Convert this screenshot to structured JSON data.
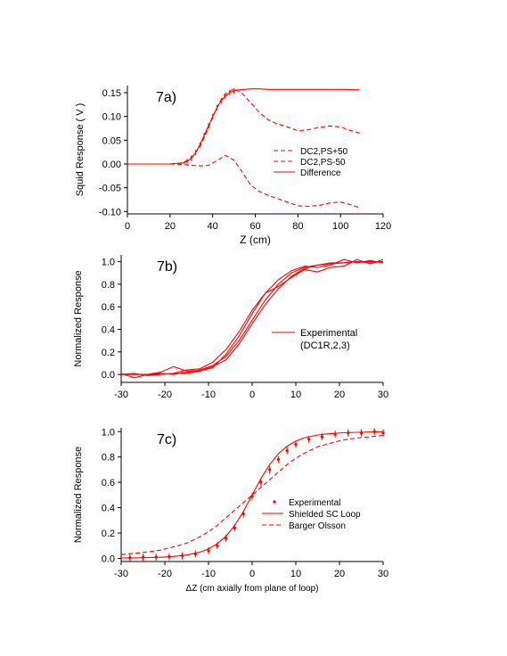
{
  "chart_data": [
    {
      "type": "line",
      "panel_label": "7a)",
      "xlabel": "Z  (cm)",
      "ylabel": "Squid Response  ( V )",
      "xlim": [
        0,
        120
      ],
      "ylim": [
        -0.105,
        0.165
      ],
      "xticks": [
        0,
        20,
        40,
        60,
        80,
        100,
        120
      ],
      "yticks": [
        -0.1,
        -0.05,
        0.0,
        0.05,
        0.1,
        0.15
      ],
      "ytick_labels": [
        "-0.10",
        "-0.05",
        "0.00",
        "0.05",
        "0.10",
        "0.15"
      ],
      "grid": false,
      "legend_position": "right-middle",
      "series": [
        {
          "name": "DC2,PS+50",
          "style": "dashed",
          "x": [
            0,
            20,
            25,
            28,
            31,
            34,
            37,
            40,
            43,
            46,
            50,
            54,
            58,
            62,
            66,
            70,
            75,
            80,
            85,
            90,
            95,
            100,
            105,
            109
          ],
          "y": [
            0.0,
            0.0,
            0.002,
            0.007,
            0.018,
            0.036,
            0.065,
            0.098,
            0.128,
            0.148,
            0.158,
            0.148,
            0.128,
            0.108,
            0.093,
            0.085,
            0.078,
            0.07,
            0.072,
            0.077,
            0.08,
            0.078,
            0.07,
            0.065
          ]
        },
        {
          "name": "DC2,PS-50",
          "style": "dashed",
          "x": [
            0,
            20,
            26,
            30,
            34,
            38,
            42,
            46,
            50,
            54,
            58,
            62,
            66,
            70,
            75,
            80,
            85,
            90,
            95,
            100,
            105,
            109
          ],
          "y": [
            0.0,
            0.0,
            -0.001,
            -0.003,
            -0.004,
            -0.003,
            0.007,
            0.018,
            0.008,
            -0.018,
            -0.045,
            -0.058,
            -0.066,
            -0.072,
            -0.08,
            -0.088,
            -0.089,
            -0.087,
            -0.082,
            -0.08,
            -0.086,
            -0.092
          ]
        },
        {
          "name": "Difference",
          "style": "solid",
          "x": [
            0,
            20,
            26,
            28,
            30,
            32,
            34,
            36,
            38,
            40,
            42,
            44,
            46,
            48,
            50,
            52,
            55,
            58,
            62,
            66,
            70,
            80,
            90,
            100,
            109
          ],
          "y": [
            0.0,
            0.0,
            0.002,
            0.005,
            0.012,
            0.024,
            0.04,
            0.06,
            0.08,
            0.1,
            0.118,
            0.133,
            0.143,
            0.15,
            0.154,
            0.156,
            0.157,
            0.158,
            0.158,
            0.157,
            0.157,
            0.157,
            0.157,
            0.157,
            0.156
          ]
        }
      ]
    },
    {
      "type": "line",
      "panel_label": "7b)",
      "xlabel": "",
      "ylabel": "Normalized Response",
      "xlim": [
        -30,
        30
      ],
      "ylim": [
        -0.07,
        1.06
      ],
      "xticks": [
        -30,
        -20,
        -10,
        0,
        10,
        20,
        30
      ],
      "yticks": [
        0.0,
        0.2,
        0.4,
        0.6,
        0.8,
        1.0
      ],
      "ytick_labels": [
        "0.0",
        "0.2",
        "0.4",
        "0.6",
        "0.8",
        "1.0"
      ],
      "grid": false,
      "legend_position": "right-middle",
      "legend_label": "Experimental",
      "legend_sublabel": "(DC1R,2,3)",
      "series": [
        {
          "x": [
            -30,
            -27,
            -24,
            -21,
            -18,
            -15,
            -12,
            -9,
            -6,
            -3,
            0,
            3,
            6,
            9,
            12,
            15,
            18,
            21,
            24,
            27,
            30
          ],
          "y": [
            0.0,
            0.0,
            0.0,
            0.01,
            0.0,
            0.02,
            0.04,
            0.08,
            0.16,
            0.3,
            0.48,
            0.66,
            0.8,
            0.9,
            0.95,
            0.97,
            0.98,
            0.99,
            1.0,
            0.99,
            1.0
          ]
        },
        {
          "x": [
            -30,
            -27,
            -24,
            -21,
            -18,
            -15,
            -12,
            -9,
            -6,
            -3,
            0,
            3,
            6,
            9,
            12,
            15,
            18,
            21,
            24,
            27,
            30
          ],
          "y": [
            0.01,
            -0.03,
            0.0,
            0.02,
            0.07,
            0.03,
            0.03,
            0.06,
            0.18,
            0.34,
            0.54,
            0.72,
            0.84,
            0.92,
            0.96,
            0.95,
            0.97,
            1.02,
            0.99,
            1.01,
            0.99
          ]
        },
        {
          "x": [
            -30,
            -27,
            -24,
            -21,
            -18,
            -15,
            -12,
            -9,
            -6,
            -3,
            0,
            3,
            6,
            9,
            12,
            15,
            18,
            21,
            24,
            27,
            30
          ],
          "y": [
            0.0,
            0.01,
            -0.01,
            0.0,
            0.01,
            0.04,
            0.05,
            0.11,
            0.22,
            0.38,
            0.57,
            0.72,
            0.78,
            0.86,
            0.93,
            0.91,
            0.95,
            0.96,
            1.02,
            0.98,
            1.02
          ]
        },
        {
          "x": [
            -30,
            -27,
            -24,
            -21,
            -18,
            -15,
            -12,
            -9,
            -6,
            -3,
            0,
            3,
            6,
            9,
            12,
            15,
            18,
            21,
            24,
            27,
            30
          ],
          "y": [
            0.0,
            0.0,
            0.0,
            0.0,
            0.01,
            0.01,
            0.03,
            0.07,
            0.13,
            0.27,
            0.45,
            0.62,
            0.76,
            0.87,
            0.94,
            0.97,
            0.99,
            0.99,
            1.0,
            1.0,
            1.0
          ]
        }
      ]
    },
    {
      "type": "line",
      "panel_label": "7c)",
      "xlabel": "ΔZ  (cm axially from plane of loop)",
      "ylabel": "Normalized Response",
      "xlim": [
        -30,
        30
      ],
      "ylim": [
        -0.025,
        1.03
      ],
      "xticks": [
        -30,
        -20,
        -10,
        0,
        10,
        20,
        30
      ],
      "yticks": [
        0.0,
        0.2,
        0.4,
        0.6,
        0.8,
        1.0
      ],
      "ytick_labels": [
        "0.0",
        "0.2",
        "0.4",
        "0.6",
        "0.8",
        "1.0"
      ],
      "grid": false,
      "legend_position": "right-middle",
      "series": [
        {
          "name": "Experimental",
          "style": "points",
          "x": [
            -28,
            -25,
            -22,
            -19,
            -16,
            -13,
            -10,
            -8,
            -6,
            -4,
            -2,
            0,
            2,
            4,
            6,
            8,
            10,
            13,
            16,
            19,
            22,
            25,
            28,
            30
          ],
          "y": [
            0.005,
            0.008,
            0.01,
            0.013,
            0.02,
            0.035,
            0.06,
            0.1,
            0.16,
            0.24,
            0.35,
            0.49,
            0.6,
            0.7,
            0.78,
            0.85,
            0.9,
            0.94,
            0.96,
            0.98,
            0.99,
            0.99,
            1.0,
            0.99
          ]
        },
        {
          "name": "Shielded SC Loop",
          "style": "solid",
          "x": [
            -30,
            -27,
            -24,
            -21,
            -18,
            -15,
            -12,
            -10,
            -8,
            -6,
            -4,
            -2,
            0,
            2,
            4,
            6,
            8,
            10,
            12,
            15,
            18,
            21,
            24,
            27,
            30
          ],
          "y": [
            0.003,
            0.004,
            0.006,
            0.009,
            0.015,
            0.026,
            0.048,
            0.075,
            0.115,
            0.175,
            0.26,
            0.37,
            0.5,
            0.63,
            0.74,
            0.825,
            0.885,
            0.925,
            0.952,
            0.974,
            0.985,
            0.991,
            0.995,
            0.997,
            0.998
          ]
        },
        {
          "name": "Barger Olsson",
          "style": "dashed",
          "x": [
            -30,
            -27,
            -24,
            -21,
            -18,
            -15,
            -12,
            -10,
            -8,
            -6,
            -4,
            -2,
            0,
            2,
            4,
            6,
            8,
            10,
            12,
            15,
            18,
            21,
            24,
            27,
            30
          ],
          "y": [
            0.03,
            0.04,
            0.05,
            0.065,
            0.09,
            0.12,
            0.17,
            0.21,
            0.26,
            0.32,
            0.38,
            0.44,
            0.5,
            0.56,
            0.62,
            0.68,
            0.74,
            0.79,
            0.83,
            0.88,
            0.91,
            0.935,
            0.95,
            0.96,
            0.97
          ]
        }
      ]
    }
  ],
  "colors": {
    "series": "#ff0000",
    "axis": "#000000"
  }
}
